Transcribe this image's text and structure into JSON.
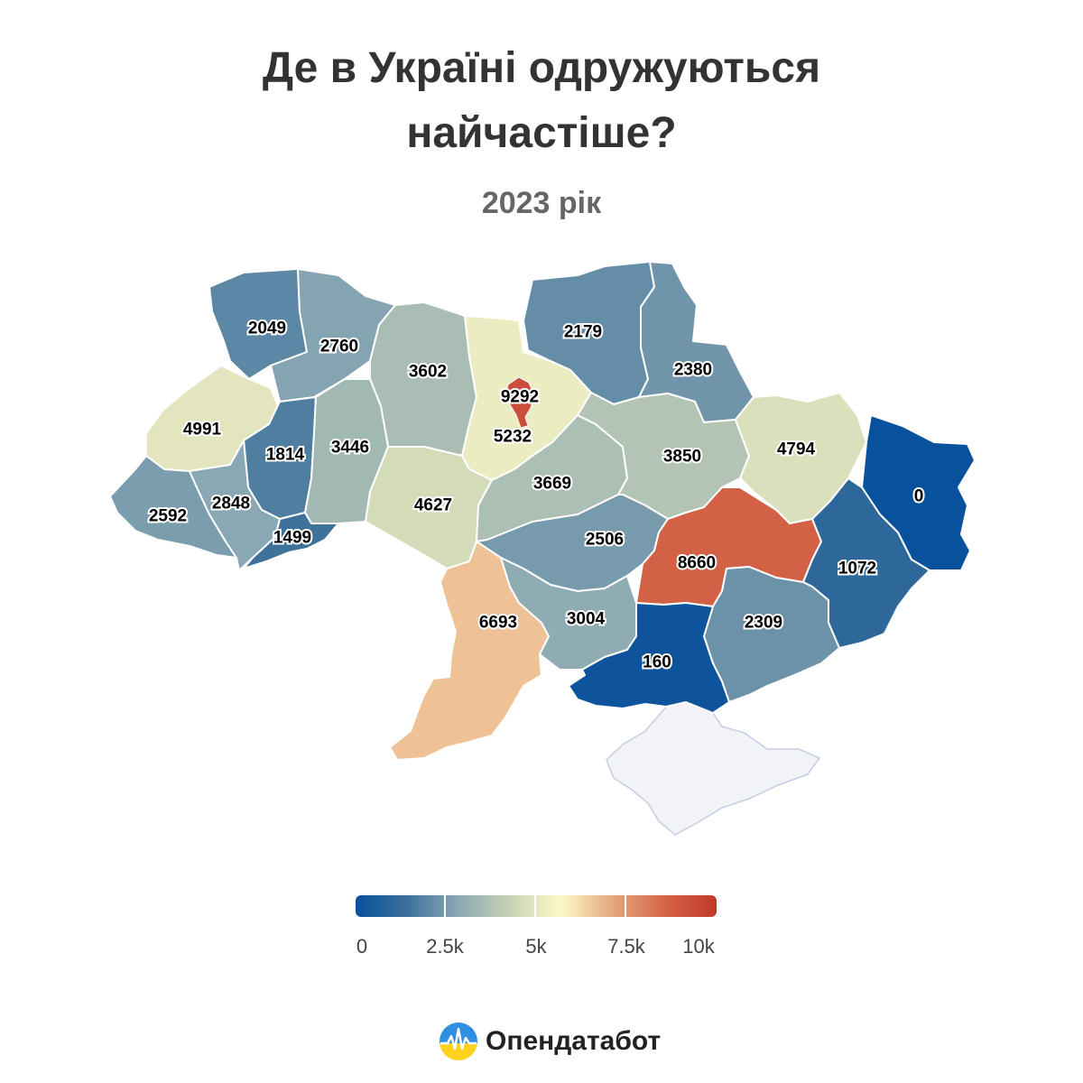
{
  "title_line1": "Де в Україні одружуються",
  "title_line2": "найчастіше?",
  "subtitle": "2023 рік",
  "brand": {
    "name": "Опендатабот",
    "logo_icon": "opendatabot-logo-icon"
  },
  "legend": {
    "ticks": [
      "0",
      "2.5k",
      "5k",
      "7.5k",
      "10k"
    ],
    "min": 0,
    "max": 10000,
    "colors": [
      "#08519c",
      "#3b6f9a",
      "#8aa8b3",
      "#c5d1b4",
      "#fffac8",
      "#e6a87f",
      "#d46447",
      "#c0392b"
    ]
  },
  "regions": [
    {
      "name": "Волинська",
      "value": 2049
    },
    {
      "name": "Рівненська",
      "value": 2760
    },
    {
      "name": "Житомирська",
      "value": 3602
    },
    {
      "name": "Київ",
      "value": 9292
    },
    {
      "name": "Київська",
      "value": 5232
    },
    {
      "name": "Чернігівська",
      "value": 2179
    },
    {
      "name": "Сумська",
      "value": 2380
    },
    {
      "name": "Львівська",
      "value": 4991
    },
    {
      "name": "Тернопільська",
      "value": 1814
    },
    {
      "name": "Хмельницька",
      "value": 3446
    },
    {
      "name": "Вінницька",
      "value": 4627
    },
    {
      "name": "Черкаська",
      "value": 3669
    },
    {
      "name": "Полтавська",
      "value": 3850
    },
    {
      "name": "Харківська",
      "value": 4794
    },
    {
      "name": "Луганська",
      "value": 0
    },
    {
      "name": "Закарпатська",
      "value": 2592
    },
    {
      "name": "Івано-Франківська",
      "value": 2848
    },
    {
      "name": "Чернівецька",
      "value": 1499
    },
    {
      "name": "Кіровоградська",
      "value": 2506
    },
    {
      "name": "Дніпропетровська",
      "value": 8660
    },
    {
      "name": "Донецька",
      "value": 1072
    },
    {
      "name": "Одеська",
      "value": 6693
    },
    {
      "name": "Миколаївська",
      "value": 3004
    },
    {
      "name": "Запорізька",
      "value": 2309
    },
    {
      "name": "Херсонська",
      "value": 160
    }
  ],
  "no_data_color": "#f2f3f7"
}
